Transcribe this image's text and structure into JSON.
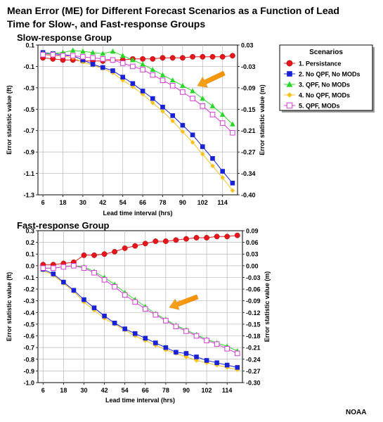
{
  "title": "Mean Error (ME) for Different Forecast Scenarios as a Function of Lead Time for Slow-, and Fast-response Groups",
  "credit": "NOAA",
  "legend": {
    "title": "Scenarios",
    "items": [
      {
        "label": "1. Persistance",
        "color": "#e8151b",
        "marker": "circle"
      },
      {
        "label": "2. No QPF, No MODs",
        "color": "#1a22d6",
        "marker": "square"
      },
      {
        "label": "3. QPF, No MODs",
        "color": "#2bd62b",
        "marker": "triangle"
      },
      {
        "label": "4. No QPF, MODs",
        "color": "#f7c21c",
        "marker": "diamond"
      },
      {
        "label": "5. QPF, MODs",
        "color": "#d43cd4",
        "marker": "open-square"
      }
    ]
  },
  "chart_data": [
    {
      "type": "line",
      "title": "Slow-response Group",
      "xlabel": "Lead time interval (hrs)",
      "ylabel": "Error statistic value (ft)",
      "y2label": "Error statistic value (m)",
      "x": [
        6,
        12,
        18,
        24,
        30,
        36,
        42,
        48,
        54,
        60,
        66,
        72,
        78,
        84,
        90,
        96,
        102,
        108,
        114,
        120
      ],
      "xticks": [
        "6",
        "18",
        "30",
        "42",
        "54",
        "66",
        "78",
        "90",
        "102",
        "114"
      ],
      "xlim": [
        3,
        123
      ],
      "ylim": [
        -1.3,
        0.1
      ],
      "yticks": [
        "0.1",
        "-0.1",
        "-0.3",
        "-0.5",
        "-0.7",
        "-0.9",
        "-1.1",
        "-1.3"
      ],
      "y2ticks": [
        "0.03",
        "-0.03",
        "-0.09",
        "-0.15",
        "-0.21",
        "-0.27",
        "-0.34",
        "-0.40"
      ],
      "grid": true,
      "arrow": "pointing at series 3 and 5 near 90 hrs",
      "series": [
        {
          "values": [
            -0.02,
            -0.03,
            -0.04,
            -0.04,
            -0.05,
            -0.05,
            -0.05,
            -0.04,
            -0.04,
            -0.03,
            -0.03,
            -0.03,
            -0.02,
            -0.02,
            -0.02,
            -0.01,
            -0.01,
            -0.01,
            -0.01,
            0.0
          ]
        },
        {
          "values": [
            0.03,
            0.02,
            0.01,
            0.0,
            -0.04,
            -0.08,
            -0.11,
            -0.14,
            -0.2,
            -0.26,
            -0.33,
            -0.4,
            -0.48,
            -0.56,
            -0.65,
            -0.74,
            -0.85,
            -0.96,
            -1.08,
            -1.19
          ]
        },
        {
          "values": [
            0.02,
            0.02,
            0.03,
            0.05,
            0.04,
            0.03,
            0.02,
            0.04,
            0.0,
            -0.04,
            -0.08,
            -0.13,
            -0.18,
            -0.23,
            -0.28,
            -0.33,
            -0.4,
            -0.47,
            -0.55,
            -0.64
          ]
        },
        {
          "values": [
            0.01,
            0.0,
            0.0,
            -0.02,
            -0.06,
            -0.09,
            -0.12,
            -0.16,
            -0.23,
            -0.29,
            -0.36,
            -0.44,
            -0.52,
            -0.61,
            -0.71,
            -0.81,
            -0.92,
            -1.03,
            -1.14,
            -1.26
          ]
        },
        {
          "values": [
            0.01,
            0.01,
            0.0,
            0.0,
            -0.01,
            -0.02,
            -0.03,
            -0.04,
            -0.07,
            -0.1,
            -0.13,
            -0.18,
            -0.23,
            -0.28,
            -0.34,
            -0.4,
            -0.47,
            -0.55,
            -0.63,
            -0.72
          ]
        }
      ]
    },
    {
      "type": "line",
      "title": "Fast-response Group",
      "xlabel": "Lead time interval (hrs)",
      "ylabel": "Error statistic value (ft)",
      "y2label": "Error statistic value (m)",
      "x": [
        6,
        12,
        18,
        24,
        30,
        36,
        42,
        48,
        54,
        60,
        66,
        72,
        78,
        84,
        90,
        96,
        102,
        108,
        114,
        120
      ],
      "xticks": [
        "6",
        "18",
        "30",
        "42",
        "54",
        "66",
        "78",
        "90",
        "102",
        "114"
      ],
      "xlim": [
        3,
        123
      ],
      "ylim": [
        -1.0,
        0.3
      ],
      "yticks": [
        "0.3",
        "0.2",
        "0.1",
        "0.0",
        "-0.1",
        "-0.2",
        "-0.3",
        "-0.4",
        "-0.5",
        "-0.6",
        "-0.7",
        "-0.8",
        "-0.9",
        "-1.0"
      ],
      "y2ticks": [
        "0.09",
        "0.06",
        "0.03",
        "0.00",
        "-0.03",
        "-0.06",
        "-0.09",
        "-0.12",
        "-0.15",
        "-0.18",
        "-0.21",
        "-0.24",
        "-0.27",
        "-0.30"
      ],
      "grid": true,
      "arrow": "pointing at series 3 and 5 near 78 hrs",
      "series": [
        {
          "values": [
            0.01,
            0.01,
            0.02,
            0.03,
            0.09,
            0.09,
            0.1,
            0.12,
            0.15,
            0.17,
            0.19,
            0.21,
            0.21,
            0.22,
            0.23,
            0.24,
            0.24,
            0.25,
            0.25,
            0.26
          ]
        },
        {
          "values": [
            -0.03,
            -0.07,
            -0.14,
            -0.21,
            -0.29,
            -0.36,
            -0.43,
            -0.49,
            -0.54,
            -0.58,
            -0.62,
            -0.66,
            -0.7,
            -0.74,
            -0.75,
            -0.78,
            -0.81,
            -0.83,
            -0.85,
            -0.87
          ]
        },
        {
          "values": [
            -0.02,
            -0.02,
            -0.01,
            0.0,
            -0.01,
            -0.05,
            -0.1,
            -0.16,
            -0.23,
            -0.29,
            -0.35,
            -0.41,
            -0.46,
            -0.51,
            -0.55,
            -0.59,
            -0.63,
            -0.66,
            -0.69,
            -0.73
          ]
        },
        {
          "values": [
            -0.04,
            -0.08,
            -0.15,
            -0.22,
            -0.31,
            -0.38,
            -0.45,
            -0.5,
            -0.55,
            -0.6,
            -0.64,
            -0.68,
            -0.72,
            -0.75,
            -0.78,
            -0.81,
            -0.83,
            -0.85,
            -0.87,
            -0.89
          ]
        },
        {
          "values": [
            -0.02,
            -0.02,
            -0.01,
            0.0,
            -0.02,
            -0.06,
            -0.12,
            -0.18,
            -0.25,
            -0.31,
            -0.37,
            -0.42,
            -0.47,
            -0.52,
            -0.56,
            -0.6,
            -0.64,
            -0.67,
            -0.71,
            -0.75
          ]
        }
      ]
    }
  ]
}
